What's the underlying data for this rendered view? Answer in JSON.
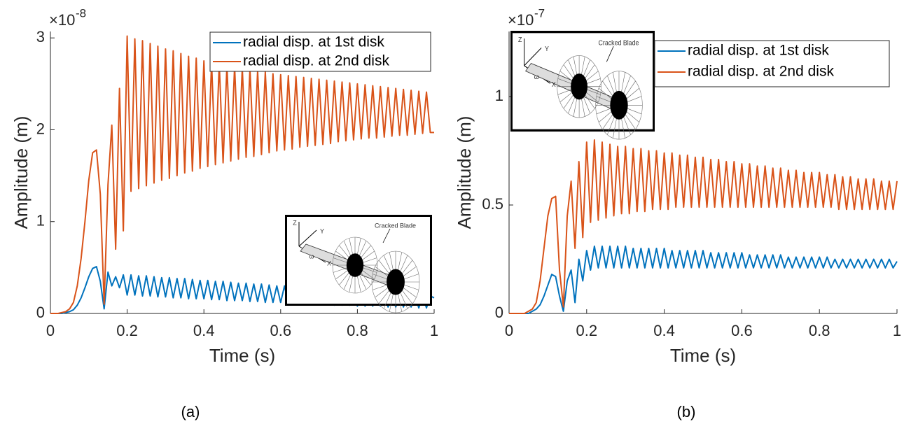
{
  "chart_data": [
    {
      "type": "line",
      "caption": "(a)",
      "xlabel": "Time (s)",
      "ylabel": "Amplitude (m)",
      "y_multiplier": "×10",
      "y_exponent": "-8",
      "legend": "upper right",
      "xlim": [
        0,
        1
      ],
      "ylim": [
        0,
        3.07
      ],
      "xticks": [
        0,
        0.2,
        0.4,
        0.6,
        0.8,
        1
      ],
      "yticks": [
        0,
        1,
        2,
        3
      ],
      "inset_texts": [
        "Cracked Blade",
        "Z",
        "Y",
        "X",
        "ω"
      ],
      "x": [
        0,
        0.01,
        0.02,
        0.03,
        0.04,
        0.05,
        0.06,
        0.07,
        0.08,
        0.09,
        0.1,
        0.11,
        0.12,
        0.13,
        0.14,
        0.15,
        0.16,
        0.17,
        0.18,
        0.19,
        0.2,
        0.21,
        0.22,
        0.23,
        0.24,
        0.25,
        0.26,
        0.27,
        0.28,
        0.29,
        0.3,
        0.31,
        0.32,
        0.33,
        0.34,
        0.35,
        0.36,
        0.37,
        0.38,
        0.39,
        0.4,
        0.41,
        0.42,
        0.43,
        0.44,
        0.45,
        0.46,
        0.47,
        0.48,
        0.49,
        0.5,
        0.51,
        0.52,
        0.53,
        0.54,
        0.55,
        0.56,
        0.57,
        0.58,
        0.59,
        0.6,
        0.61,
        0.62,
        0.63,
        0.64,
        0.65,
        0.66,
        0.67,
        0.68,
        0.69,
        0.7,
        0.71,
        0.72,
        0.73,
        0.74,
        0.75,
        0.76,
        0.77,
        0.78,
        0.79,
        0.8,
        0.81,
        0.82,
        0.83,
        0.84,
        0.85,
        0.86,
        0.87,
        0.88,
        0.89,
        0.9,
        0.91,
        0.92,
        0.93,
        0.94,
        0.95,
        0.96,
        0.97,
        0.98,
        0.99,
        1
      ],
      "series": [
        {
          "name": "radial disp. at 1st disk",
          "color": "#0072bd",
          "values": [
            0,
            0,
            0,
            0,
            0.01,
            0.02,
            0.04,
            0.09,
            0.17,
            0.28,
            0.4,
            0.49,
            0.51,
            0.35,
            0.05,
            0.45,
            0.3,
            0.4,
            0.28,
            0.42,
            0.2,
            0.42,
            0.2,
            0.41,
            0.19,
            0.41,
            0.19,
            0.4,
            0.18,
            0.39,
            0.18,
            0.39,
            0.17,
            0.38,
            0.17,
            0.38,
            0.16,
            0.37,
            0.16,
            0.36,
            0.16,
            0.36,
            0.15,
            0.35,
            0.15,
            0.35,
            0.14,
            0.34,
            0.14,
            0.33,
            0.14,
            0.33,
            0.13,
            0.32,
            0.13,
            0.32,
            0.12,
            0.31,
            0.12,
            0.3,
            0.12,
            0.3,
            0.11,
            0.29,
            0.11,
            0.29,
            0.11,
            0.28,
            0.1,
            0.27,
            0.1,
            0.27,
            0.1,
            0.26,
            0.09,
            0.26,
            0.09,
            0.25,
            0.09,
            0.24,
            0.08,
            0.24,
            0.08,
            0.23,
            0.08,
            0.23,
            0.08,
            0.22,
            0.07,
            0.21,
            0.07,
            0.21,
            0.07,
            0.2,
            0.07,
            0.2,
            0.06,
            0.19,
            0.06,
            0.19,
            0.17
          ]
        },
        {
          "name": "radial disp. at 2nd disk",
          "color": "#d95319",
          "values": [
            0,
            0,
            0,
            0.01,
            0.02,
            0.05,
            0.12,
            0.3,
            0.6,
            1.0,
            1.45,
            1.75,
            1.78,
            1.3,
            0.1,
            1.4,
            2.05,
            0.7,
            2.45,
            0.9,
            3.02,
            1.33,
            2.99,
            1.36,
            2.97,
            1.39,
            2.94,
            1.42,
            2.91,
            1.45,
            2.88,
            1.47,
            2.86,
            1.5,
            2.83,
            1.53,
            2.8,
            1.55,
            2.78,
            1.58,
            2.75,
            1.6,
            2.73,
            1.62,
            2.72,
            1.64,
            2.7,
            1.66,
            2.69,
            1.68,
            2.67,
            1.7,
            2.66,
            1.71,
            2.64,
            1.73,
            2.63,
            1.75,
            2.61,
            1.77,
            2.6,
            1.78,
            2.59,
            1.79,
            2.58,
            1.81,
            2.57,
            1.82,
            2.56,
            1.83,
            2.55,
            1.84,
            2.54,
            1.85,
            2.53,
            1.87,
            2.52,
            1.88,
            2.51,
            1.89,
            2.5,
            1.9,
            2.49,
            1.91,
            2.48,
            1.91,
            2.47,
            1.92,
            2.46,
            1.93,
            2.45,
            1.94,
            2.44,
            1.94,
            2.43,
            1.95,
            2.42,
            1.96,
            2.41,
            1.97,
            1.97
          ]
        }
      ]
    },
    {
      "type": "line",
      "caption": "(b)",
      "xlabel": "Time (s)",
      "ylabel": "Amplitude (m)",
      "y_multiplier": "×10",
      "y_exponent": "-7",
      "legend": "upper right",
      "xlim": [
        0,
        1
      ],
      "ylim": [
        0,
        1.3
      ],
      "xticks": [
        0,
        0.2,
        0.4,
        0.6,
        0.8,
        1
      ],
      "yticks": [
        0,
        0.5,
        1
      ],
      "inset_texts": [
        "Cracked Blade",
        "Z",
        "Y",
        "X",
        "ω"
      ],
      "x": [
        0,
        0.01,
        0.02,
        0.03,
        0.04,
        0.05,
        0.06,
        0.07,
        0.08,
        0.09,
        0.1,
        0.11,
        0.12,
        0.13,
        0.14,
        0.15,
        0.16,
        0.17,
        0.18,
        0.19,
        0.2,
        0.21,
        0.22,
        0.23,
        0.24,
        0.25,
        0.26,
        0.27,
        0.28,
        0.29,
        0.3,
        0.31,
        0.32,
        0.33,
        0.34,
        0.35,
        0.36,
        0.37,
        0.38,
        0.39,
        0.4,
        0.41,
        0.42,
        0.43,
        0.44,
        0.45,
        0.46,
        0.47,
        0.48,
        0.49,
        0.5,
        0.51,
        0.52,
        0.53,
        0.54,
        0.55,
        0.56,
        0.57,
        0.58,
        0.59,
        0.6,
        0.61,
        0.62,
        0.63,
        0.64,
        0.65,
        0.66,
        0.67,
        0.68,
        0.69,
        0.7,
        0.71,
        0.72,
        0.73,
        0.74,
        0.75,
        0.76,
        0.77,
        0.78,
        0.79,
        0.8,
        0.81,
        0.82,
        0.83,
        0.84,
        0.85,
        0.86,
        0.87,
        0.88,
        0.89,
        0.9,
        0.91,
        0.92,
        0.93,
        0.94,
        0.95,
        0.96,
        0.97,
        0.98,
        0.99,
        1
      ],
      "series": [
        {
          "name": "radial disp. at 1st disk",
          "color": "#0072bd",
          "values": [
            0,
            0,
            0,
            0,
            0,
            0,
            0.01,
            0.02,
            0.04,
            0.08,
            0.13,
            0.18,
            0.17,
            0.08,
            0.01,
            0.15,
            0.2,
            0.05,
            0.25,
            0.15,
            0.29,
            0.2,
            0.31,
            0.21,
            0.31,
            0.21,
            0.31,
            0.21,
            0.31,
            0.21,
            0.31,
            0.21,
            0.3,
            0.21,
            0.3,
            0.21,
            0.3,
            0.21,
            0.3,
            0.21,
            0.3,
            0.21,
            0.29,
            0.21,
            0.29,
            0.21,
            0.29,
            0.21,
            0.29,
            0.21,
            0.29,
            0.21,
            0.28,
            0.21,
            0.28,
            0.21,
            0.28,
            0.21,
            0.28,
            0.21,
            0.28,
            0.21,
            0.27,
            0.21,
            0.27,
            0.21,
            0.27,
            0.21,
            0.27,
            0.21,
            0.27,
            0.21,
            0.26,
            0.21,
            0.26,
            0.21,
            0.26,
            0.21,
            0.26,
            0.21,
            0.26,
            0.21,
            0.26,
            0.21,
            0.25,
            0.21,
            0.25,
            0.21,
            0.25,
            0.21,
            0.25,
            0.21,
            0.25,
            0.21,
            0.25,
            0.21,
            0.25,
            0.21,
            0.25,
            0.21,
            0.24
          ]
        },
        {
          "name": "radial disp. at 2nd disk",
          "color": "#d95319",
          "values": [
            0,
            0,
            0,
            0,
            0,
            0.01,
            0.02,
            0.05,
            0.15,
            0.3,
            0.45,
            0.53,
            0.54,
            0.2,
            0.03,
            0.45,
            0.61,
            0.3,
            0.7,
            0.35,
            0.79,
            0.42,
            0.8,
            0.43,
            0.79,
            0.44,
            0.78,
            0.45,
            0.77,
            0.46,
            0.77,
            0.46,
            0.76,
            0.47,
            0.76,
            0.47,
            0.75,
            0.48,
            0.75,
            0.48,
            0.74,
            0.48,
            0.74,
            0.49,
            0.73,
            0.49,
            0.73,
            0.49,
            0.72,
            0.49,
            0.72,
            0.49,
            0.71,
            0.49,
            0.71,
            0.49,
            0.7,
            0.49,
            0.7,
            0.49,
            0.69,
            0.49,
            0.69,
            0.49,
            0.68,
            0.49,
            0.68,
            0.49,
            0.67,
            0.49,
            0.67,
            0.49,
            0.66,
            0.49,
            0.66,
            0.49,
            0.65,
            0.49,
            0.65,
            0.49,
            0.65,
            0.49,
            0.64,
            0.49,
            0.64,
            0.48,
            0.63,
            0.48,
            0.63,
            0.48,
            0.62,
            0.48,
            0.62,
            0.48,
            0.62,
            0.48,
            0.61,
            0.48,
            0.61,
            0.48,
            0.61
          ]
        }
      ]
    }
  ]
}
